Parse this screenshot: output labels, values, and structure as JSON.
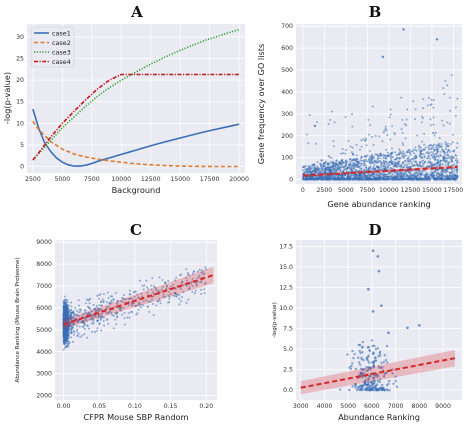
{
  "chart_data": [
    {
      "id": "A",
      "type": "line",
      "panel_letter": "A",
      "xlabel": "Background",
      "ylabel": "-log(p-value)",
      "xlim": [
        2000,
        20500
      ],
      "ylim": [
        -1.5,
        33
      ],
      "xticks": [
        2500,
        5000,
        7500,
        10000,
        12500,
        15000,
        17500,
        20000
      ],
      "yticks": [
        0,
        5,
        10,
        15,
        20,
        25,
        30
      ],
      "grid": true,
      "legend_position": "top-left",
      "series": [
        {
          "name": "case1",
          "color": "#3a6fb5",
          "dash": "solid",
          "x": [
            2500,
            3000,
            3500,
            4000,
            4500,
            5000,
            5500,
            6000,
            6500,
            7000,
            7500,
            8000,
            9000,
            10000,
            11000,
            12000,
            13000,
            14000,
            15000,
            16000,
            17000,
            18000,
            19000,
            20000
          ],
          "y": [
            13.3,
            8.8,
            5.5,
            3.5,
            2.0,
            1.0,
            0.4,
            0.1,
            0.1,
            0.3,
            0.7,
            1.2,
            2.0,
            2.8,
            3.6,
            4.4,
            5.2,
            5.9,
            6.6,
            7.3,
            8.0,
            8.6,
            9.2,
            9.8
          ]
        },
        {
          "name": "case2",
          "color": "#e07b2a",
          "dash": "dash",
          "x": [
            2500,
            3000,
            4000,
            5000,
            6000,
            7000,
            8000,
            9000,
            10000,
            11000,
            12000,
            13000,
            14000,
            15000,
            16000,
            17000,
            18000,
            19000,
            20000
          ],
          "y": [
            10.5,
            8.5,
            5.8,
            4.0,
            2.9,
            2.2,
            1.7,
            1.3,
            1.0,
            0.7,
            0.5,
            0.3,
            0.2,
            0.1,
            0.05,
            0.02,
            0.01,
            0.0,
            0.0
          ]
        },
        {
          "name": "case3",
          "color": "#2ca02c",
          "dash": "dot",
          "x": [
            2500,
            3000,
            4000,
            5000,
            6000,
            7000,
            8000,
            9000,
            10000,
            11000,
            12000,
            13000,
            14000,
            15000,
            16000,
            17000,
            18000,
            19000,
            20000
          ],
          "y": [
            1.5,
            3.0,
            6.0,
            9.0,
            11.5,
            14.0,
            16.3,
            18.3,
            20.0,
            21.5,
            23.0,
            24.4,
            25.7,
            26.9,
            28.0,
            29.1,
            30.0,
            30.9,
            31.7
          ]
        },
        {
          "name": "case4",
          "color": "#c0171d",
          "dash": "dashdot",
          "x": [
            2500,
            3000,
            4000,
            5000,
            6000,
            7000,
            8000,
            9000,
            10000,
            11000,
            12000,
            13000,
            14000,
            15000,
            16000,
            17000,
            18000,
            19000,
            20000
          ],
          "y": [
            1.5,
            3.2,
            6.8,
            10.0,
            12.8,
            15.5,
            18.0,
            20.0,
            21.3,
            21.3,
            21.3,
            21.3,
            21.3,
            21.3,
            21.3,
            21.3,
            21.3,
            21.3,
            21.3
          ]
        }
      ]
    },
    {
      "id": "B",
      "type": "scatter",
      "panel_letter": "B",
      "xlabel": "Gene abundance ranking",
      "ylabel": "Gene frequency over GO lists",
      "xlim": [
        -800,
        18500
      ],
      "ylim": [
        -20,
        710
      ],
      "xticks": [
        0,
        2500,
        5000,
        7500,
        10000,
        12500,
        15000,
        17500
      ],
      "yticks": [
        0,
        100,
        200,
        300,
        400,
        500,
        600,
        700
      ],
      "grid": true,
      "point_color": "#3a6fb5",
      "regression": {
        "color": "#d62728",
        "x": [
          0,
          18000
        ],
        "y": [
          18,
          58
        ],
        "ci_halfwidth": 6
      },
      "cloud": {
        "x_range": [
          0,
          18000
        ],
        "typical_max": [
          60,
          180
        ],
        "outlier_max": 500
      },
      "highlighted_points": [
        {
          "x": 11700,
          "y": 685
        },
        {
          "x": 15600,
          "y": 640
        },
        {
          "x": 1400,
          "y": 245
        },
        {
          "x": 9300,
          "y": 560
        }
      ]
    },
    {
      "id": "C",
      "type": "scatter",
      "panel_letter": "C",
      "xlabel": "CFPR Mouse SBP Random",
      "ylabel": "Abundance Ranking (Mouse Brain Proteome)",
      "xlim": [
        -0.012,
        0.215
      ],
      "ylim": [
        1800,
        9100
      ],
      "xticks": [
        0.0,
        0.05,
        0.1,
        0.15,
        0.2
      ],
      "xtick_labels": [
        "0.00",
        "0.05",
        "0.10",
        "0.15",
        "0.20"
      ],
      "yticks": [
        2000,
        3000,
        4000,
        5000,
        6000,
        7000,
        8000,
        9000
      ],
      "grid": true,
      "point_color": "#3a6fb5",
      "regression": {
        "color": "#d62728",
        "x": [
          0.0,
          0.21
        ],
        "y": [
          5250,
          7500
        ],
        "ci_halfwidth_ends": [
          200,
          380
        ]
      },
      "cloud": {
        "dense_x_max": 0.012,
        "y_range": [
          2100,
          8900
        ]
      }
    },
    {
      "id": "D",
      "type": "scatter",
      "panel_letter": "D",
      "xlabel": "Abundance Ranking",
      "ylabel": "-log(p-value)",
      "xlim": [
        2800,
        9800
      ],
      "ylim": [
        -1.2,
        18.3
      ],
      "xticks": [
        3000,
        4000,
        5000,
        6000,
        7000,
        8000,
        9000
      ],
      "yticks": [
        0,
        2.5,
        5,
        7.5,
        10,
        12.5,
        15,
        17.5
      ],
      "ytick_labels": [
        "0.0",
        "2.5",
        "5.0",
        "7.5",
        "10.0",
        "12.5",
        "15.0",
        "17.5"
      ],
      "grid": true,
      "point_color": "#3a6fb5",
      "regression": {
        "color": "#d62728",
        "x": [
          3000,
          9500
        ],
        "y": [
          0.3,
          3.9
        ],
        "ci_halfwidth_ends": [
          0.8,
          1.0
        ]
      },
      "highlighted_points": [
        {
          "x": 6050,
          "y": 17.0
        },
        {
          "x": 6250,
          "y": 16.3
        },
        {
          "x": 6300,
          "y": 14.5
        },
        {
          "x": 5850,
          "y": 12.3
        },
        {
          "x": 6400,
          "y": 10.3
        },
        {
          "x": 6050,
          "y": 9.6
        },
        {
          "x": 8000,
          "y": 7.9
        },
        {
          "x": 6700,
          "y": 7.0
        },
        {
          "x": 7500,
          "y": 7.6
        }
      ]
    }
  ]
}
